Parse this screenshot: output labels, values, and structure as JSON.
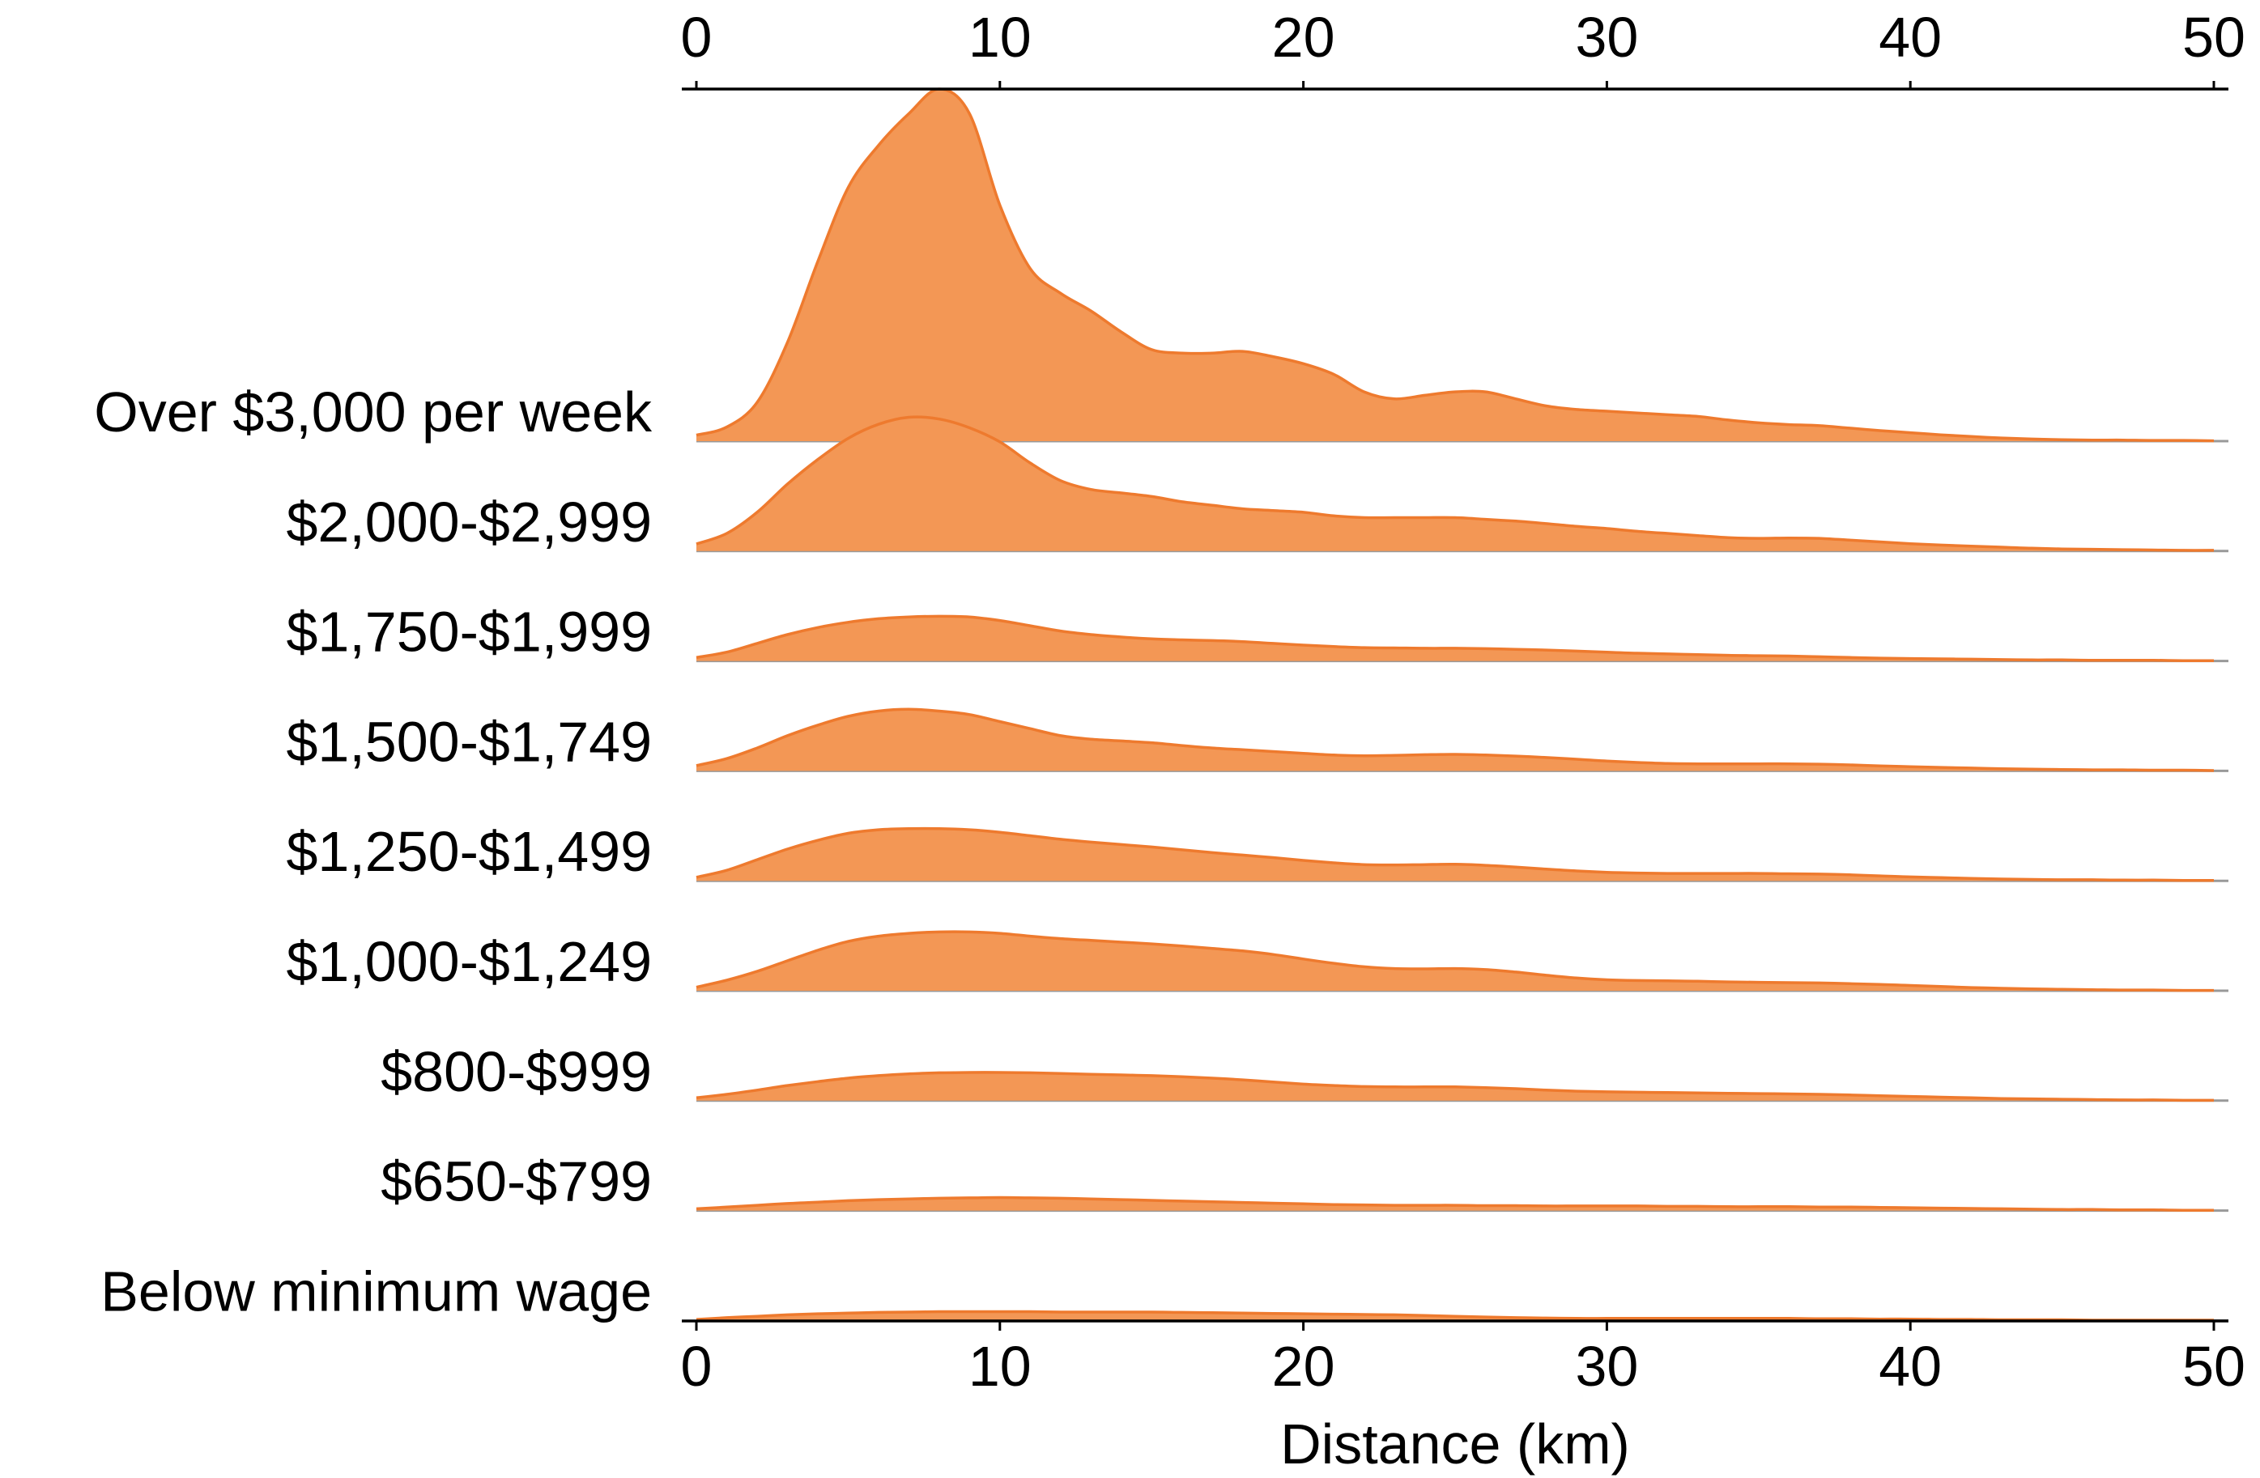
{
  "chart_data": {
    "type": "area",
    "subtype": "ridgeline",
    "xlabel": "Distance (km)",
    "xlim": [
      0,
      50
    ],
    "x_ticks": [
      0,
      10,
      20,
      30,
      40,
      50
    ],
    "x_axis_positions": [
      "top",
      "bottom"
    ],
    "grid": false,
    "legend": "none",
    "fill_color": "#F39755",
    "line_color": "#EE7A2E",
    "baseline_color": "#999999",
    "x": [
      0,
      1,
      2,
      3,
      4,
      5,
      6,
      7,
      8,
      9,
      10,
      11,
      12,
      13,
      14,
      15,
      16,
      17,
      18,
      19,
      20,
      21,
      22,
      23,
      24,
      25,
      26,
      27,
      28,
      29,
      30,
      31,
      32,
      33,
      34,
      35,
      36,
      37,
      38,
      39,
      40,
      41,
      42,
      43,
      44,
      45,
      46,
      47,
      48,
      49,
      50
    ],
    "series": [
      {
        "name": "Over $3,000 per week",
        "values": [
          0.017,
          0.04,
          0.11,
          0.28,
          0.51,
          0.72,
          0.84,
          0.93,
          1.0,
          0.93,
          0.67,
          0.49,
          0.42,
          0.37,
          0.31,
          0.26,
          0.25,
          0.25,
          0.255,
          0.24,
          0.22,
          0.19,
          0.14,
          0.12,
          0.13,
          0.14,
          0.14,
          0.12,
          0.1,
          0.09,
          0.085,
          0.08,
          0.075,
          0.07,
          0.06,
          0.052,
          0.047,
          0.044,
          0.037,
          0.03,
          0.024,
          0.018,
          0.013,
          0.009,
          0.006,
          0.004,
          0.003,
          0.003,
          0.002,
          0.002,
          0.001
        ]
      },
      {
        "name": "$2,000-$2,999",
        "values": [
          0.02,
          0.05,
          0.11,
          0.19,
          0.26,
          0.32,
          0.36,
          0.38,
          0.375,
          0.35,
          0.31,
          0.25,
          0.2,
          0.175,
          0.165,
          0.155,
          0.14,
          0.13,
          0.12,
          0.115,
          0.11,
          0.1,
          0.095,
          0.095,
          0.095,
          0.095,
          0.09,
          0.085,
          0.078,
          0.07,
          0.064,
          0.056,
          0.05,
          0.044,
          0.038,
          0.036,
          0.037,
          0.036,
          0.031,
          0.026,
          0.021,
          0.017,
          0.014,
          0.011,
          0.008,
          0.006,
          0.005,
          0.004,
          0.003,
          0.002,
          0.002
        ]
      },
      {
        "name": "$1,750-$1,999",
        "values": [
          0.01,
          0.025,
          0.05,
          0.075,
          0.095,
          0.11,
          0.12,
          0.125,
          0.127,
          0.125,
          0.115,
          0.1,
          0.085,
          0.075,
          0.068,
          0.063,
          0.06,
          0.058,
          0.055,
          0.05,
          0.045,
          0.041,
          0.038,
          0.037,
          0.036,
          0.036,
          0.035,
          0.033,
          0.031,
          0.028,
          0.025,
          0.022,
          0.02,
          0.018,
          0.016,
          0.015,
          0.014,
          0.012,
          0.01,
          0.008,
          0.007,
          0.006,
          0.005,
          0.004,
          0.003,
          0.003,
          0.002,
          0.002,
          0.002,
          0.001,
          0.001
        ]
      },
      {
        "name": "$1,500-$1,749",
        "values": [
          0.015,
          0.035,
          0.065,
          0.1,
          0.13,
          0.155,
          0.17,
          0.175,
          0.17,
          0.16,
          0.14,
          0.12,
          0.1,
          0.09,
          0.085,
          0.08,
          0.072,
          0.065,
          0.06,
          0.055,
          0.05,
          0.045,
          0.043,
          0.044,
          0.046,
          0.047,
          0.045,
          0.042,
          0.038,
          0.033,
          0.028,
          0.024,
          0.021,
          0.02,
          0.02,
          0.02,
          0.02,
          0.019,
          0.017,
          0.014,
          0.012,
          0.01,
          0.008,
          0.006,
          0.005,
          0.004,
          0.003,
          0.003,
          0.002,
          0.002,
          0.001
        ]
      },
      {
        "name": "$1,250-$1,499",
        "values": [
          0.01,
          0.03,
          0.06,
          0.09,
          0.115,
          0.135,
          0.145,
          0.148,
          0.148,
          0.145,
          0.138,
          0.128,
          0.118,
          0.11,
          0.103,
          0.096,
          0.088,
          0.08,
          0.073,
          0.066,
          0.058,
          0.051,
          0.046,
          0.045,
          0.046,
          0.047,
          0.044,
          0.039,
          0.033,
          0.028,
          0.024,
          0.022,
          0.021,
          0.021,
          0.021,
          0.021,
          0.02,
          0.019,
          0.017,
          0.014,
          0.011,
          0.009,
          0.007,
          0.005,
          0.004,
          0.003,
          0.003,
          0.002,
          0.002,
          0.001,
          0.001
        ]
      },
      {
        "name": "$1,000-$1,249",
        "values": [
          0.01,
          0.03,
          0.055,
          0.085,
          0.115,
          0.14,
          0.155,
          0.163,
          0.167,
          0.167,
          0.163,
          0.155,
          0.148,
          0.143,
          0.138,
          0.133,
          0.127,
          0.12,
          0.113,
          0.103,
          0.09,
          0.078,
          0.068,
          0.063,
          0.062,
          0.063,
          0.06,
          0.053,
          0.044,
          0.036,
          0.031,
          0.029,
          0.028,
          0.027,
          0.025,
          0.024,
          0.023,
          0.022,
          0.02,
          0.018,
          0.015,
          0.012,
          0.009,
          0.007,
          0.005,
          0.004,
          0.003,
          0.002,
          0.002,
          0.001,
          0.001
        ]
      },
      {
        "name": "$800-$999",
        "values": [
          0.008,
          0.018,
          0.03,
          0.043,
          0.054,
          0.064,
          0.071,
          0.076,
          0.079,
          0.08,
          0.08,
          0.079,
          0.077,
          0.075,
          0.073,
          0.071,
          0.068,
          0.064,
          0.059,
          0.053,
          0.047,
          0.043,
          0.04,
          0.039,
          0.039,
          0.039,
          0.037,
          0.034,
          0.03,
          0.027,
          0.025,
          0.024,
          0.023,
          0.022,
          0.021,
          0.02,
          0.019,
          0.018,
          0.016,
          0.014,
          0.012,
          0.01,
          0.008,
          0.006,
          0.005,
          0.004,
          0.003,
          0.002,
          0.002,
          0.001,
          0.001
        ]
      },
      {
        "name": "$650-$799",
        "values": [
          0.005,
          0.01,
          0.015,
          0.02,
          0.024,
          0.028,
          0.031,
          0.033,
          0.035,
          0.036,
          0.037,
          0.036,
          0.035,
          0.033,
          0.031,
          0.029,
          0.027,
          0.025,
          0.023,
          0.021,
          0.019,
          0.017,
          0.016,
          0.015,
          0.015,
          0.015,
          0.014,
          0.014,
          0.013,
          0.013,
          0.013,
          0.013,
          0.012,
          0.012,
          0.011,
          0.011,
          0.011,
          0.01,
          0.01,
          0.009,
          0.008,
          0.007,
          0.006,
          0.005,
          0.004,
          0.003,
          0.003,
          0.002,
          0.002,
          0.001,
          0.001
        ]
      },
      {
        "name": "Below minimum wage",
        "values": [
          0.003,
          0.008,
          0.012,
          0.016,
          0.019,
          0.021,
          0.023,
          0.024,
          0.025,
          0.025,
          0.025,
          0.025,
          0.024,
          0.024,
          0.024,
          0.024,
          0.023,
          0.022,
          0.021,
          0.02,
          0.019,
          0.018,
          0.017,
          0.016,
          0.014,
          0.012,
          0.01,
          0.008,
          0.007,
          0.006,
          0.006,
          0.006,
          0.006,
          0.006,
          0.006,
          0.006,
          0.006,
          0.005,
          0.005,
          0.004,
          0.004,
          0.003,
          0.003,
          0.002,
          0.002,
          0.002,
          0.001,
          0.001,
          0.001,
          0.001,
          0.001
        ]
      }
    ]
  }
}
